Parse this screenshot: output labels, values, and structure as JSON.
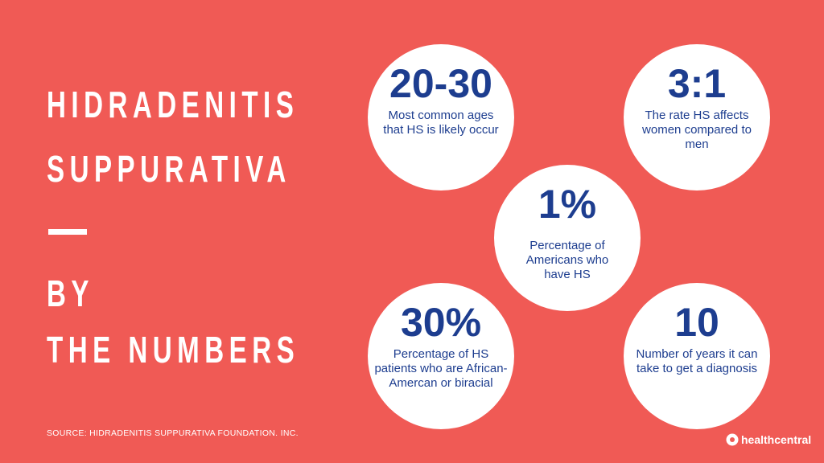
{
  "title": {
    "lines": [
      "HIDRADENITIS",
      "SUPPURATIVA",
      "BY",
      "THE NUMBERS"
    ]
  },
  "stats": [
    {
      "value": "20-30",
      "description": "Most common ages that HS is likely occur"
    },
    {
      "value": "3:1",
      "description": "The rate HS affects women compared to men"
    },
    {
      "value": "1%",
      "description": "Percentage of Americans who have HS"
    },
    {
      "value": "30%",
      "description": "Percentage of HS patients who are African-Amercan or biracial"
    },
    {
      "value": "10",
      "description": "Number of years it can take to get a diagnosis"
    }
  ],
  "source": "SOURCE: HIDRADENITIS SUPPURATIVA FOUNDATION. INC.",
  "logo": "healthcentral"
}
